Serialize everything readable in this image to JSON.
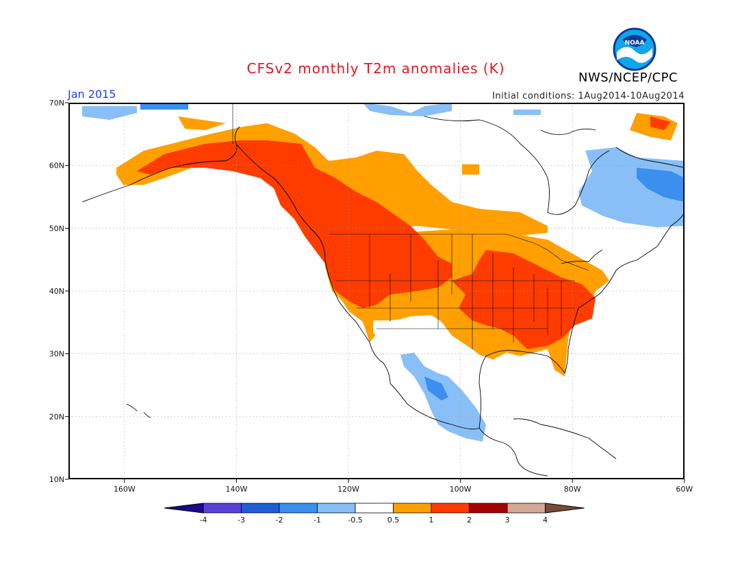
{
  "title": "CFSv2 monthly T2m anomalies (K)",
  "agency": "NWS/NCEP/CPC",
  "logo_text": "NOAA",
  "month": "Jan 2015",
  "initial_conditions": "Initial conditions: 1Aug2014-10Aug2014",
  "lon_labels": [
    "160W",
    "140W",
    "120W",
    "100W",
    "80W",
    "60W"
  ],
  "lat_labels": [
    "70N",
    "60N",
    "50N",
    "40N",
    "30N",
    "20N",
    "10N"
  ],
  "map_extent": {
    "lon": [
      -170,
      -60
    ],
    "lat": [
      10,
      70
    ]
  },
  "colorbar": {
    "labels": [
      "-4",
      "-3",
      "-2",
      "-1",
      "-0.5",
      "0.5",
      "1",
      "2",
      "3",
      "4"
    ],
    "colors": [
      "#1a0a8c",
      "#5541d8",
      "#1d5ed6",
      "#3a8fef",
      "#89bff7",
      "#ffffff",
      "#ffa000",
      "#ff3c00",
      "#a50000",
      "#d4a896",
      "#7a4a3a"
    ]
  },
  "colors": {
    "title": "#e8141e",
    "month": "#1e3cff",
    "warm_light": "#ffa000",
    "warm_strong": "#ff3c00",
    "cool_light": "#89bff7",
    "cool_mid": "#3a8fef"
  }
}
